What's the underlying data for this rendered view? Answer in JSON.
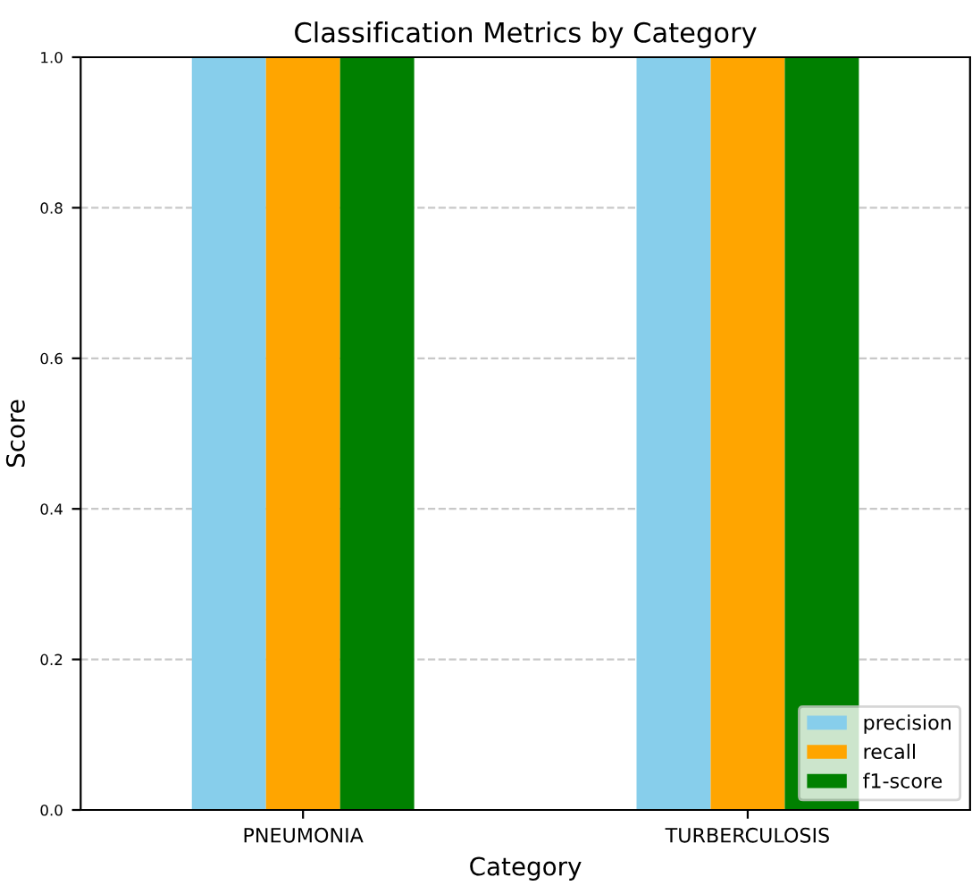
{
  "chart_data": {
    "type": "bar",
    "title": "Classification Metrics by Category",
    "xlabel": "Category",
    "ylabel": "Score",
    "categories": [
      "PNEUMONIA",
      "TURBERCULOSIS"
    ],
    "series": [
      {
        "name": "precision",
        "color": "#87ceeb",
        "values": [
          1.0,
          1.0
        ]
      },
      {
        "name": "recall",
        "color": "#ffa500",
        "values": [
          1.0,
          1.0
        ]
      },
      {
        "name": "f1-score",
        "color": "#008000",
        "values": [
          1.0,
          1.0
        ]
      }
    ],
    "ylim": [
      0,
      1
    ],
    "yticks": [
      {
        "value": 0,
        "label": "0.0"
      },
      0.2,
      0.4,
      0.6,
      0.8,
      {
        "value": 1,
        "label": "1.0"
      }
    ],
    "grid": "y",
    "legend": "bottom right"
  }
}
